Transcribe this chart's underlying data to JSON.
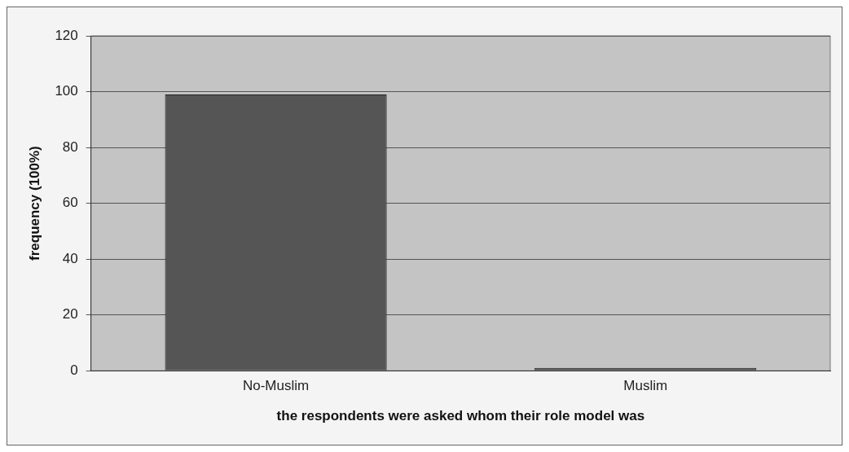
{
  "chart_data": {
    "type": "bar",
    "xlabel": "the respondents were asked whom their role model was",
    "ylabel": "frequency (100%)",
    "categories": [
      "No-Muslim",
      "Muslim"
    ],
    "values": [
      99,
      1
    ],
    "color": "#555555",
    "ylim": [
      0,
      120
    ],
    "yticks": [
      0,
      20,
      40,
      60,
      80,
      100,
      120
    ],
    "grid": "y",
    "legend": false
  }
}
